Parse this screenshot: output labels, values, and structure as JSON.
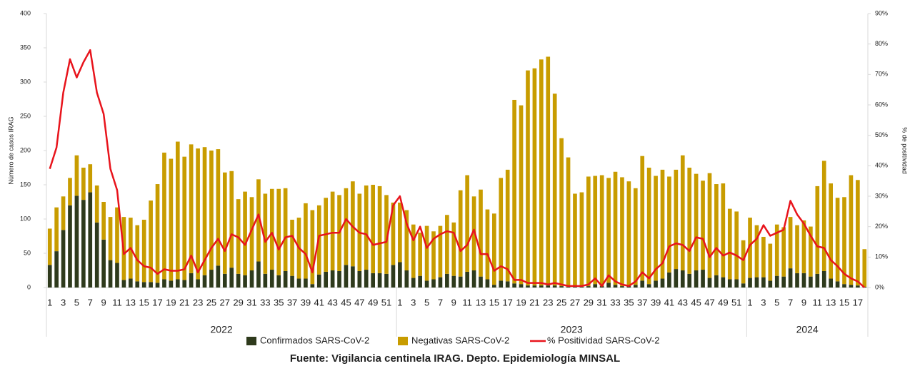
{
  "chart_data": {
    "type": "bar",
    "stacked": true,
    "y_label": "Número de casos IRAG",
    "y2_label": "% de positividad",
    "source": "Fuente: Vigilancia centinela IRAG. Depto. Epidemiología MINSAL",
    "groups": [
      {
        "name": "2022",
        "categories": [
          "1",
          null,
          "3",
          null,
          "5",
          null,
          "7",
          null,
          "9",
          null,
          "11",
          null,
          "13",
          null,
          "15",
          null,
          "17",
          null,
          "19",
          null,
          "21",
          null,
          "23",
          null,
          "25",
          null,
          "27",
          null,
          "29",
          null,
          "31",
          null,
          "33",
          null,
          "35",
          null,
          "37",
          null,
          "39",
          null,
          "41",
          null,
          "43",
          null,
          "45",
          null,
          "47",
          null,
          "49",
          null,
          "51",
          null
        ]
      },
      {
        "name": "2023",
        "categories": [
          "1",
          null,
          "3",
          null,
          "5",
          null,
          "7",
          null,
          "9",
          null,
          "11",
          null,
          "13",
          null,
          "15",
          null,
          "17",
          null,
          "19",
          null,
          "21",
          null,
          "23",
          null,
          "25",
          null,
          "27",
          null,
          "29",
          null,
          "31",
          null,
          "33",
          null,
          "35",
          null,
          "37",
          null,
          "39",
          null,
          "41",
          null,
          "43",
          null,
          "45",
          null,
          "47",
          null,
          "49",
          null,
          "51",
          null
        ]
      },
      {
        "name": "2024",
        "categories": [
          "1",
          null,
          "3",
          null,
          "5",
          null,
          "7",
          null,
          "9",
          null,
          "11",
          null,
          "13",
          null,
          "15",
          null,
          "17",
          null
        ]
      }
    ],
    "series": [
      {
        "name": "Confirmados SARS-CoV-2",
        "type": "bar",
        "color": "#2e3a1c",
        "values": [
          33,
          53,
          84,
          120,
          134,
          128,
          139,
          95,
          70,
          40,
          36,
          11,
          13,
          9,
          8,
          8,
          7,
          12,
          10,
          12,
          11,
          21,
          12,
          18,
          26,
          32,
          20,
          29,
          20,
          18,
          25,
          38,
          20,
          26,
          18,
          24,
          17,
          13,
          13,
          5,
          19,
          23,
          25,
          24,
          33,
          31,
          24,
          26,
          21,
          21,
          20,
          33,
          37,
          25,
          14,
          17,
          10,
          12,
          15,
          20,
          17,
          16,
          23,
          25,
          16,
          12,
          4,
          10,
          9,
          6,
          5,
          3,
          3,
          3,
          3,
          3,
          2,
          1,
          1,
          1,
          2,
          5,
          2,
          7,
          4,
          2,
          2,
          4,
          10,
          5,
          10,
          13,
          22,
          27,
          25,
          20,
          25,
          26,
          14,
          18,
          15,
          12,
          12,
          6,
          14,
          15,
          15,
          10,
          17,
          16,
          28,
          21,
          21,
          16,
          20,
          24,
          13,
          9,
          5,
          4,
          3,
          1
        ]
      },
      {
        "name": "Negativas SARS-CoV-2",
        "type": "bar",
        "color": "#c89c00",
        "values": [
          53,
          64,
          49,
          40,
          59,
          47,
          41,
          54,
          55,
          63,
          81,
          92,
          89,
          82,
          91,
          119,
          144,
          185,
          178,
          201,
          180,
          188,
          191,
          187,
          174,
          170,
          148,
          141,
          109,
          122,
          107,
          120,
          117,
          118,
          126,
          121,
          82,
          89,
          110,
          108,
          101,
          108,
          115,
          111,
          112,
          124,
          113,
          123,
          129,
          127,
          115,
          91,
          87,
          88,
          78,
          63,
          80,
          70,
          75,
          86,
          78,
          126,
          141,
          108,
          127,
          102,
          104,
          150,
          163,
          268,
          261,
          314,
          317,
          330,
          334,
          280,
          216,
          189,
          136,
          138,
          160,
          158,
          162,
          153,
          165,
          159,
          153,
          141,
          182,
          170,
          153,
          159,
          140,
          145,
          168,
          155,
          141,
          130,
          153,
          133,
          137,
          103,
          99,
          63,
          88,
          76,
          59,
          54,
          75,
          72,
          75,
          70,
          77,
          73,
          128,
          161,
          139,
          122,
          127,
          160,
          154,
          55
        ]
      },
      {
        "name": "% Positividad SARS-CoV-2",
        "type": "line",
        "axis": "y2",
        "color": "#e8141c",
        "values": [
          39,
          46,
          64,
          75,
          69,
          74,
          78,
          64,
          57,
          39,
          32,
          11,
          13,
          9,
          7,
          6.5,
          4.5,
          6,
          5.5,
          5.5,
          6,
          10.5,
          5,
          9,
          13,
          16,
          12,
          17.5,
          16.5,
          14,
          19,
          24,
          15,
          18,
          12.5,
          16.5,
          17,
          13,
          11,
          5,
          17,
          17.5,
          18,
          18,
          22.5,
          20,
          18,
          17.5,
          14,
          14.5,
          15,
          27,
          30,
          21,
          15.5,
          20,
          13,
          16,
          17.5,
          18.5,
          18,
          12,
          14,
          19,
          11,
          11,
          5.5,
          7,
          6,
          2.5,
          2.5,
          1.5,
          1.5,
          1.5,
          1,
          1.5,
          1,
          0.5,
          0.5,
          0.5,
          1,
          3,
          0.5,
          4,
          2,
          1,
          0.5,
          2,
          5,
          3,
          6,
          8,
          13.5,
          14.5,
          14,
          12,
          16.5,
          16,
          10,
          13,
          10.5,
          11.5,
          10.5,
          9,
          14,
          16,
          20.5,
          17,
          18,
          19,
          28.5,
          24,
          21,
          17,
          13.5,
          13,
          9,
          7,
          4.5,
          3,
          2,
          0
        ]
      }
    ],
    "ylim": [
      0,
      400
    ],
    "yticks": [
      0,
      50,
      100,
      150,
      200,
      250,
      300,
      350,
      400
    ],
    "y2lim": [
      0,
      90
    ],
    "y2ticks": [
      {
        "value": 0,
        "label": "0%"
      },
      {
        "value": 10,
        "label": "10%"
      },
      {
        "value": 20,
        "label": "20%"
      },
      {
        "value": 30,
        "label": "30%"
      },
      {
        "value": 40,
        "label": "40%"
      },
      {
        "value": 50,
        "label": "50%"
      },
      {
        "value": 60,
        "label": "60%"
      },
      {
        "value": 70,
        "label": "70%"
      },
      {
        "value": 80,
        "label": "80%"
      },
      {
        "value": 90,
        "label": "90%"
      }
    ],
    "legend": "bottom"
  }
}
